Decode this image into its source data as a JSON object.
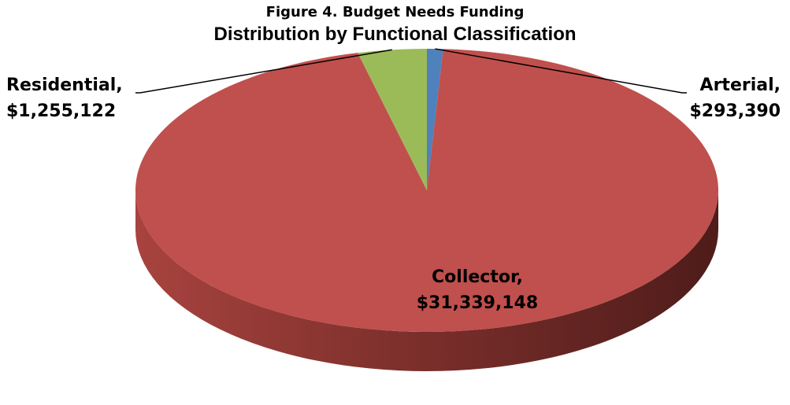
{
  "chart_data": {
    "type": "pie",
    "title": "Figure 4.  Budget Needs Funding",
    "subtitle": "Distribution by Functional Classification",
    "legend": "none",
    "slices": [
      {
        "category": "Arterial",
        "value": 293390,
        "label_line1": "Arterial,",
        "label_line2": "$293,390",
        "color": "#4F81BD"
      },
      {
        "category": "Collector",
        "value": 31339148,
        "label_line1": "Collector,",
        "label_line2": "$31,339,148",
        "color": "#C0504D"
      },
      {
        "category": "Residential",
        "value": 1255122,
        "label_line1": "Residential,",
        "label_line2": "$1,255,122",
        "color": "#9BBB59"
      }
    ]
  }
}
